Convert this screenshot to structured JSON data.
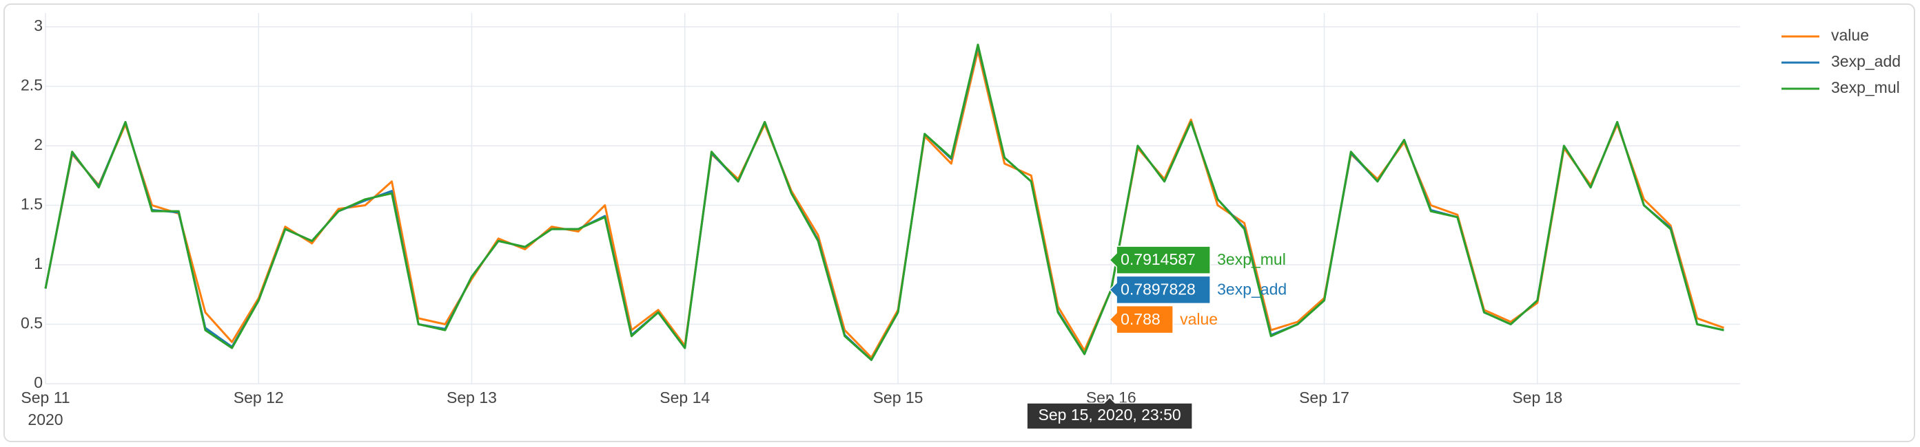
{
  "chart_data": {
    "type": "line",
    "x": [
      "2020-09-11 00:00",
      "2020-09-11 03:00",
      "2020-09-11 06:00",
      "2020-09-11 09:00",
      "2020-09-11 12:00",
      "2020-09-11 15:00",
      "2020-09-11 18:00",
      "2020-09-11 21:00",
      "2020-09-12 00:00",
      "2020-09-12 03:00",
      "2020-09-12 06:00",
      "2020-09-12 09:00",
      "2020-09-12 12:00",
      "2020-09-12 15:00",
      "2020-09-12 18:00",
      "2020-09-12 21:00",
      "2020-09-13 00:00",
      "2020-09-13 03:00",
      "2020-09-13 06:00",
      "2020-09-13 09:00",
      "2020-09-13 12:00",
      "2020-09-13 15:00",
      "2020-09-13 18:00",
      "2020-09-13 21:00",
      "2020-09-14 00:00",
      "2020-09-14 03:00",
      "2020-09-14 06:00",
      "2020-09-14 09:00",
      "2020-09-14 12:00",
      "2020-09-14 15:00",
      "2020-09-14 18:00",
      "2020-09-14 21:00",
      "2020-09-15 00:00",
      "2020-09-15 03:00",
      "2020-09-15 06:00",
      "2020-09-15 09:00",
      "2020-09-15 12:00",
      "2020-09-15 15:00",
      "2020-09-15 18:00",
      "2020-09-15 21:00",
      "2020-09-16 00:00",
      "2020-09-16 03:00",
      "2020-09-16 06:00",
      "2020-09-16 09:00",
      "2020-09-16 12:00",
      "2020-09-16 15:00",
      "2020-09-16 18:00",
      "2020-09-16 21:00",
      "2020-09-17 00:00",
      "2020-09-17 03:00",
      "2020-09-17 06:00",
      "2020-09-17 09:00",
      "2020-09-17 12:00",
      "2020-09-17 15:00",
      "2020-09-17 18:00",
      "2020-09-17 21:00",
      "2020-09-18 00:00",
      "2020-09-18 03:00",
      "2020-09-18 06:00",
      "2020-09-18 09:00",
      "2020-09-18 12:00",
      "2020-09-18 15:00",
      "2020-09-18 18:00",
      "2020-09-18 21:00"
    ],
    "series": [
      {
        "name": "value",
        "color": "#ff7f0e",
        "values": [
          0.8,
          1.93,
          1.67,
          2.18,
          1.5,
          1.43,
          0.6,
          0.35,
          0.72,
          1.32,
          1.18,
          1.47,
          1.5,
          1.7,
          0.55,
          0.5,
          0.88,
          1.22,
          1.13,
          1.32,
          1.28,
          1.5,
          0.45,
          0.62,
          0.32,
          1.93,
          1.72,
          2.18,
          1.62,
          1.25,
          0.45,
          0.22,
          0.62,
          2.08,
          1.85,
          2.8,
          1.85,
          1.75,
          0.65,
          0.28,
          0.79,
          1.98,
          1.72,
          2.22,
          1.5,
          1.35,
          0.45,
          0.52,
          0.72,
          1.93,
          1.72,
          2.03,
          1.5,
          1.42,
          0.62,
          0.52,
          0.68,
          1.98,
          1.67,
          2.18,
          1.55,
          1.33,
          0.55,
          0.47
        ]
      },
      {
        "name": "3exp_add",
        "color": "#1f77b4",
        "values": [
          0.8,
          1.94,
          1.66,
          2.2,
          1.46,
          1.44,
          0.47,
          0.31,
          0.7,
          1.3,
          1.2,
          1.45,
          1.54,
          1.62,
          0.5,
          0.46,
          0.9,
          1.2,
          1.15,
          1.3,
          1.3,
          1.41,
          0.41,
          0.6,
          0.3,
          1.94,
          1.7,
          2.2,
          1.6,
          1.21,
          0.41,
          0.2,
          0.6,
          2.1,
          1.89,
          2.84,
          1.9,
          1.7,
          0.61,
          0.25,
          0.79,
          2.0,
          1.7,
          2.2,
          1.55,
          1.31,
          0.41,
          0.5,
          0.7,
          1.94,
          1.7,
          2.05,
          1.46,
          1.4,
          0.6,
          0.5,
          0.7,
          2.0,
          1.65,
          2.2,
          1.5,
          1.31,
          0.5,
          0.45
        ]
      },
      {
        "name": "3exp_mul",
        "color": "#2ca02c",
        "values": [
          0.8,
          1.95,
          1.65,
          2.2,
          1.45,
          1.45,
          0.45,
          0.3,
          0.7,
          1.3,
          1.2,
          1.45,
          1.55,
          1.6,
          0.5,
          0.45,
          0.9,
          1.2,
          1.15,
          1.3,
          1.3,
          1.4,
          0.4,
          0.6,
          0.3,
          1.95,
          1.7,
          2.2,
          1.6,
          1.2,
          0.4,
          0.2,
          0.6,
          2.1,
          1.9,
          2.85,
          1.9,
          1.7,
          0.6,
          0.25,
          0.79,
          2.0,
          1.7,
          2.2,
          1.55,
          1.3,
          0.4,
          0.5,
          0.7,
          1.95,
          1.7,
          2.05,
          1.45,
          1.4,
          0.6,
          0.5,
          0.7,
          2.0,
          1.65,
          2.2,
          1.5,
          1.3,
          0.5,
          0.45
        ]
      }
    ],
    "xlim": [
      "2020-09-11 00:00",
      "2020-09-18 22:50"
    ],
    "xticks": [
      {
        "value": "2020-09-11 00:00",
        "label": "Sep 11"
      },
      {
        "value": "2020-09-12 00:00",
        "label": "Sep 12"
      },
      {
        "value": "2020-09-13 00:00",
        "label": "Sep 13"
      },
      {
        "value": "2020-09-14 00:00",
        "label": "Sep 14"
      },
      {
        "value": "2020-09-15 00:00",
        "label": "Sep 15"
      },
      {
        "value": "2020-09-16 00:00",
        "label": "Sep 16"
      },
      {
        "value": "2020-09-17 00:00",
        "label": "Sep 17"
      },
      {
        "value": "2020-09-18 00:00",
        "label": "Sep 18"
      }
    ],
    "x_year_label": "2020",
    "ylim": [
      0,
      3
    ],
    "yticks": [
      0,
      0.5,
      1,
      1.5,
      2,
      2.5,
      3
    ],
    "grid": true,
    "legend": "right",
    "hover": {
      "x": "2020-09-15 23:50",
      "x_label": "Sep 15, 2020, 23:50",
      "items": [
        {
          "name": "3exp_mul",
          "value": 0.7914587,
          "color": "#2ca02c"
        },
        {
          "name": "3exp_add",
          "value": 0.7897828,
          "color": "#1f77b4"
        },
        {
          "name": "value",
          "value": 0.788,
          "color": "#ff7f0e"
        }
      ]
    }
  }
}
